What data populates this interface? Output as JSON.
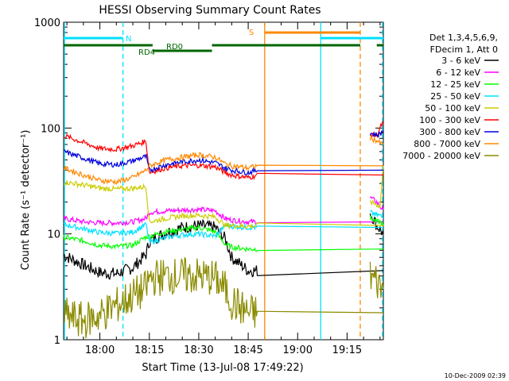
{
  "chart_data": {
    "type": "line",
    "title": "HESSI Observing Summary Count Rates",
    "xlabel": "Start Time (13-Jul-08 17:49:22)",
    "ylabel": "Count Rate (s⁻¹ detector⁻¹)",
    "y_scale": "log",
    "ylim": [
      1,
      1000
    ],
    "xlim": [
      "17:49",
      "19:26"
    ],
    "x_ticks": [
      "18:00",
      "18:15",
      "18:30",
      "18:45",
      "19:00",
      "19:15"
    ],
    "y_ticks": [
      "1",
      "10",
      "100",
      "1000"
    ],
    "timestamp": "10-Dec-2009 02:39",
    "legend": {
      "position": "right",
      "header": [
        "Det 1,3,4,5,6,9,",
        "FDecim 1, Att 0"
      ]
    },
    "flags": [
      {
        "label": "N",
        "color": "#00e0ff",
        "start": "17:49",
        "end": "18:07",
        "row": 1
      },
      {
        "label": "N",
        "color": "#00e0ff",
        "start": "19:07",
        "end": "19:26",
        "row": 1
      },
      {
        "label": "S",
        "color": "#ff8800",
        "start": "18:50",
        "end": "19:19",
        "row": 0
      },
      {
        "label": "RD0",
        "color": "#006600",
        "start": "17:49",
        "end": "18:16",
        "row": 2
      },
      {
        "label": "RD0",
        "color": "#006600",
        "start": "18:34",
        "end": "19:19",
        "row": 2
      },
      {
        "label": "RD0",
        "color": "#006600",
        "start": "19:24",
        "end": "19:26",
        "row": 2
      },
      {
        "label": "RD4",
        "color": "#006600",
        "start": "18:16",
        "end": "18:34",
        "row": 3
      }
    ],
    "vlines": [
      {
        "time": "17:49",
        "color": "#00e0ff",
        "style": "solid"
      },
      {
        "time": "18:07",
        "color": "#00e0ff",
        "style": "dashed"
      },
      {
        "time": "18:50",
        "color": "#ff8800",
        "style": "solid"
      },
      {
        "time": "19:07",
        "color": "#00e0ff",
        "style": "solid"
      },
      {
        "time": "19:19",
        "color": "#ff8800",
        "style": "dashed"
      },
      {
        "time": "19:26",
        "color": "#00e0ff",
        "style": "dashed"
      }
    ],
    "x": [
      "17:49",
      "17:55",
      "18:00",
      "18:05",
      "18:10",
      "18:14",
      "18:15",
      "18:20",
      "18:25",
      "18:30",
      "18:35",
      "18:38",
      "18:40",
      "18:45",
      "18:48",
      "19:22",
      "19:24",
      "19:25",
      "19:26"
    ],
    "series": [
      {
        "name": "3 - 6 keV",
        "color": "#000000",
        "values": [
          6.3,
          5.1,
          4.3,
          4.2,
          4.8,
          6.4,
          8.5,
          10.3,
          11.5,
          12,
          11.5,
          9,
          6,
          4.5,
          4.5,
          16,
          12,
          11,
          10
        ]
      },
      {
        "name": "6 - 12 keV",
        "color": "#ff00ff",
        "values": [
          14,
          13,
          12.7,
          12.7,
          13,
          14,
          16,
          16.5,
          16.8,
          17,
          16.5,
          14,
          13.5,
          13,
          13,
          22,
          20,
          18,
          17
        ]
      },
      {
        "name": "12 - 25 keV",
        "color": "#00ff00",
        "values": [
          9.3,
          8.6,
          7.8,
          7.6,
          7.8,
          9.4,
          9.5,
          10.5,
          11,
          11.5,
          10.5,
          8,
          7.5,
          7.2,
          7.2,
          14,
          13,
          13,
          12
        ]
      },
      {
        "name": "25 - 50 keV",
        "color": "#00e0ff",
        "values": [
          12.3,
          11.2,
          10.3,
          10.1,
          10.4,
          12.3,
          8.3,
          9.2,
          9.8,
          10,
          9.5,
          12,
          11.8,
          11.5,
          11.5,
          16,
          15,
          15,
          14
        ]
      },
      {
        "name": "50 - 100 keV",
        "color": "#cccc00",
        "values": [
          31,
          29,
          27,
          26.5,
          27,
          28,
          13,
          14,
          14.8,
          15,
          14.5,
          12,
          12,
          11.8,
          12,
          20,
          19,
          18,
          44
        ]
      },
      {
        "name": "100 - 300 keV",
        "color": "#ff0000",
        "values": [
          85,
          73,
          64,
          63,
          68,
          75,
          38,
          42,
          44,
          44.5,
          43,
          38,
          36,
          34,
          36,
          88,
          84,
          100,
          115
        ]
      },
      {
        "name": "300 - 800 keV",
        "color": "#0000dd",
        "values": [
          60,
          52,
          46,
          45,
          49,
          54,
          40,
          45,
          48,
          50,
          47,
          42,
          40,
          38,
          40,
          90,
          86,
          88,
          95
        ]
      },
      {
        "name": "800 - 7000 keV",
        "color": "#ff8800",
        "values": [
          42,
          36,
          32,
          31,
          34,
          40,
          44,
          50,
          53,
          56,
          53,
          46,
          44,
          42,
          44,
          80,
          76,
          72,
          70
        ]
      },
      {
        "name": "7000 - 20000 keV",
        "color": "#8b8b00",
        "values": [
          1.7,
          1.5,
          1.7,
          2.1,
          2.6,
          3,
          3.8,
          4,
          4,
          4,
          3.8,
          3,
          2.3,
          1.8,
          1.8,
          4,
          3.6,
          3.2,
          3
        ]
      }
    ]
  }
}
